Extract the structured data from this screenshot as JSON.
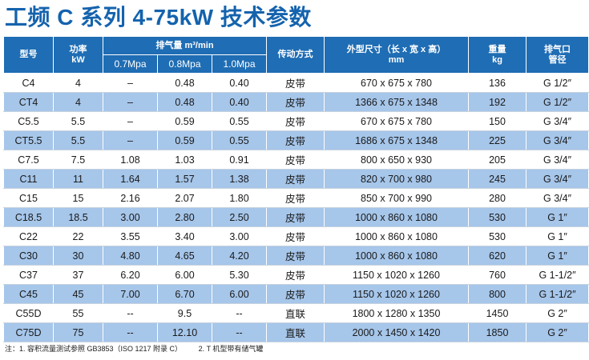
{
  "title": "工频 C 系列 4-75kW 技术参数",
  "headers": {
    "model": "型号",
    "power_line1": "功率",
    "power_line2": "kW",
    "air_group": "排气量 m³/min",
    "pressures": [
      "0.7Mpa",
      "0.8Mpa",
      "1.0Mpa"
    ],
    "drive": "传动方式",
    "dim_line1": "外型尺寸（长 x 宽 x 高）",
    "dim_line2": "mm",
    "weight_line1": "重量",
    "weight_line2": "kg",
    "outlet_line1": "排气口",
    "outlet_line2": "管径"
  },
  "rows": [
    {
      "model": "C4",
      "power": "4",
      "p07": "–",
      "p08": "0.48",
      "p10": "0.40",
      "drive": "皮带",
      "dims": "670 x 675 x 780",
      "weight": "136",
      "outlet": "G 1/2″"
    },
    {
      "model": "CT4",
      "power": "4",
      "p07": "–",
      "p08": "0.48",
      "p10": "0.40",
      "drive": "皮带",
      "dims": "1366 x 675 x 1348",
      "weight": "192",
      "outlet": "G 1/2″"
    },
    {
      "model": "C5.5",
      "power": "5.5",
      "p07": "–",
      "p08": "0.59",
      "p10": "0.55",
      "drive": "皮带",
      "dims": "670 x 675 x 780",
      "weight": "150",
      "outlet": "G 3/4″"
    },
    {
      "model": "CT5.5",
      "power": "5.5",
      "p07": "–",
      "p08": "0.59",
      "p10": "0.55",
      "drive": "皮带",
      "dims": "1686 x 675 x 1348",
      "weight": "225",
      "outlet": "G 3/4″"
    },
    {
      "model": "C7.5",
      "power": "7.5",
      "p07": "1.08",
      "p08": "1.03",
      "p10": "0.91",
      "drive": "皮带",
      "dims": "800 x 650 x 930",
      "weight": "205",
      "outlet": "G 3/4″"
    },
    {
      "model": "C11",
      "power": "11",
      "p07": "1.64",
      "p08": "1.57",
      "p10": "1.38",
      "drive": "皮带",
      "dims": "820 x 700 x 980",
      "weight": "245",
      "outlet": "G 3/4″"
    },
    {
      "model": "C15",
      "power": "15",
      "p07": "2.16",
      "p08": "2.07",
      "p10": "1.80",
      "drive": "皮带",
      "dims": "850 x 700 x 990",
      "weight": "280",
      "outlet": "G 3/4″"
    },
    {
      "model": "C18.5",
      "power": "18.5",
      "p07": "3.00",
      "p08": "2.80",
      "p10": "2.50",
      "drive": "皮带",
      "dims": "1000 x 860 x 1080",
      "weight": "530",
      "outlet": "G 1″"
    },
    {
      "model": "C22",
      "power": "22",
      "p07": "3.55",
      "p08": "3.40",
      "p10": "3.00",
      "drive": "皮带",
      "dims": "1000 x 860 x 1080",
      "weight": "530",
      "outlet": "G 1″"
    },
    {
      "model": "C30",
      "power": "30",
      "p07": "4.80",
      "p08": "4.65",
      "p10": "4.20",
      "drive": "皮带",
      "dims": "1000 x 860 x 1080",
      "weight": "620",
      "outlet": "G 1″"
    },
    {
      "model": "C37",
      "power": "37",
      "p07": "6.20",
      "p08": "6.00",
      "p10": "5.30",
      "drive": "皮带",
      "dims": "1150 x 1020 x 1260",
      "weight": "760",
      "outlet": "G 1-1/2″"
    },
    {
      "model": "C45",
      "power": "45",
      "p07": "7.00",
      "p08": "6.70",
      "p10": "6.00",
      "drive": "皮带",
      "dims": "1150 x 1020 x 1260",
      "weight": "800",
      "outlet": "G 1-1/2″"
    },
    {
      "model": "C55D",
      "power": "55",
      "p07": "--",
      "p08": "9.5",
      "p10": "--",
      "drive": "直联",
      "dims": "1800 x 1280 x 1350",
      "weight": "1450",
      "outlet": "G 2″"
    },
    {
      "model": "C75D",
      "power": "75",
      "p07": "--",
      "p08": "12.10",
      "p10": "--",
      "drive": "直联",
      "dims": "2000 x 1450 x 1420",
      "weight": "1850",
      "outlet": "G 2″"
    }
  ],
  "notes": {
    "note1": "注：1. 容积流量测试参照 GB3853（ISO 1217 附录 C）",
    "note2": "2. T 机型带有储气罐"
  },
  "colors": {
    "title": "#1463ad",
    "header_bg": "#1f6db4",
    "row_alt": "#a6c6ea"
  }
}
